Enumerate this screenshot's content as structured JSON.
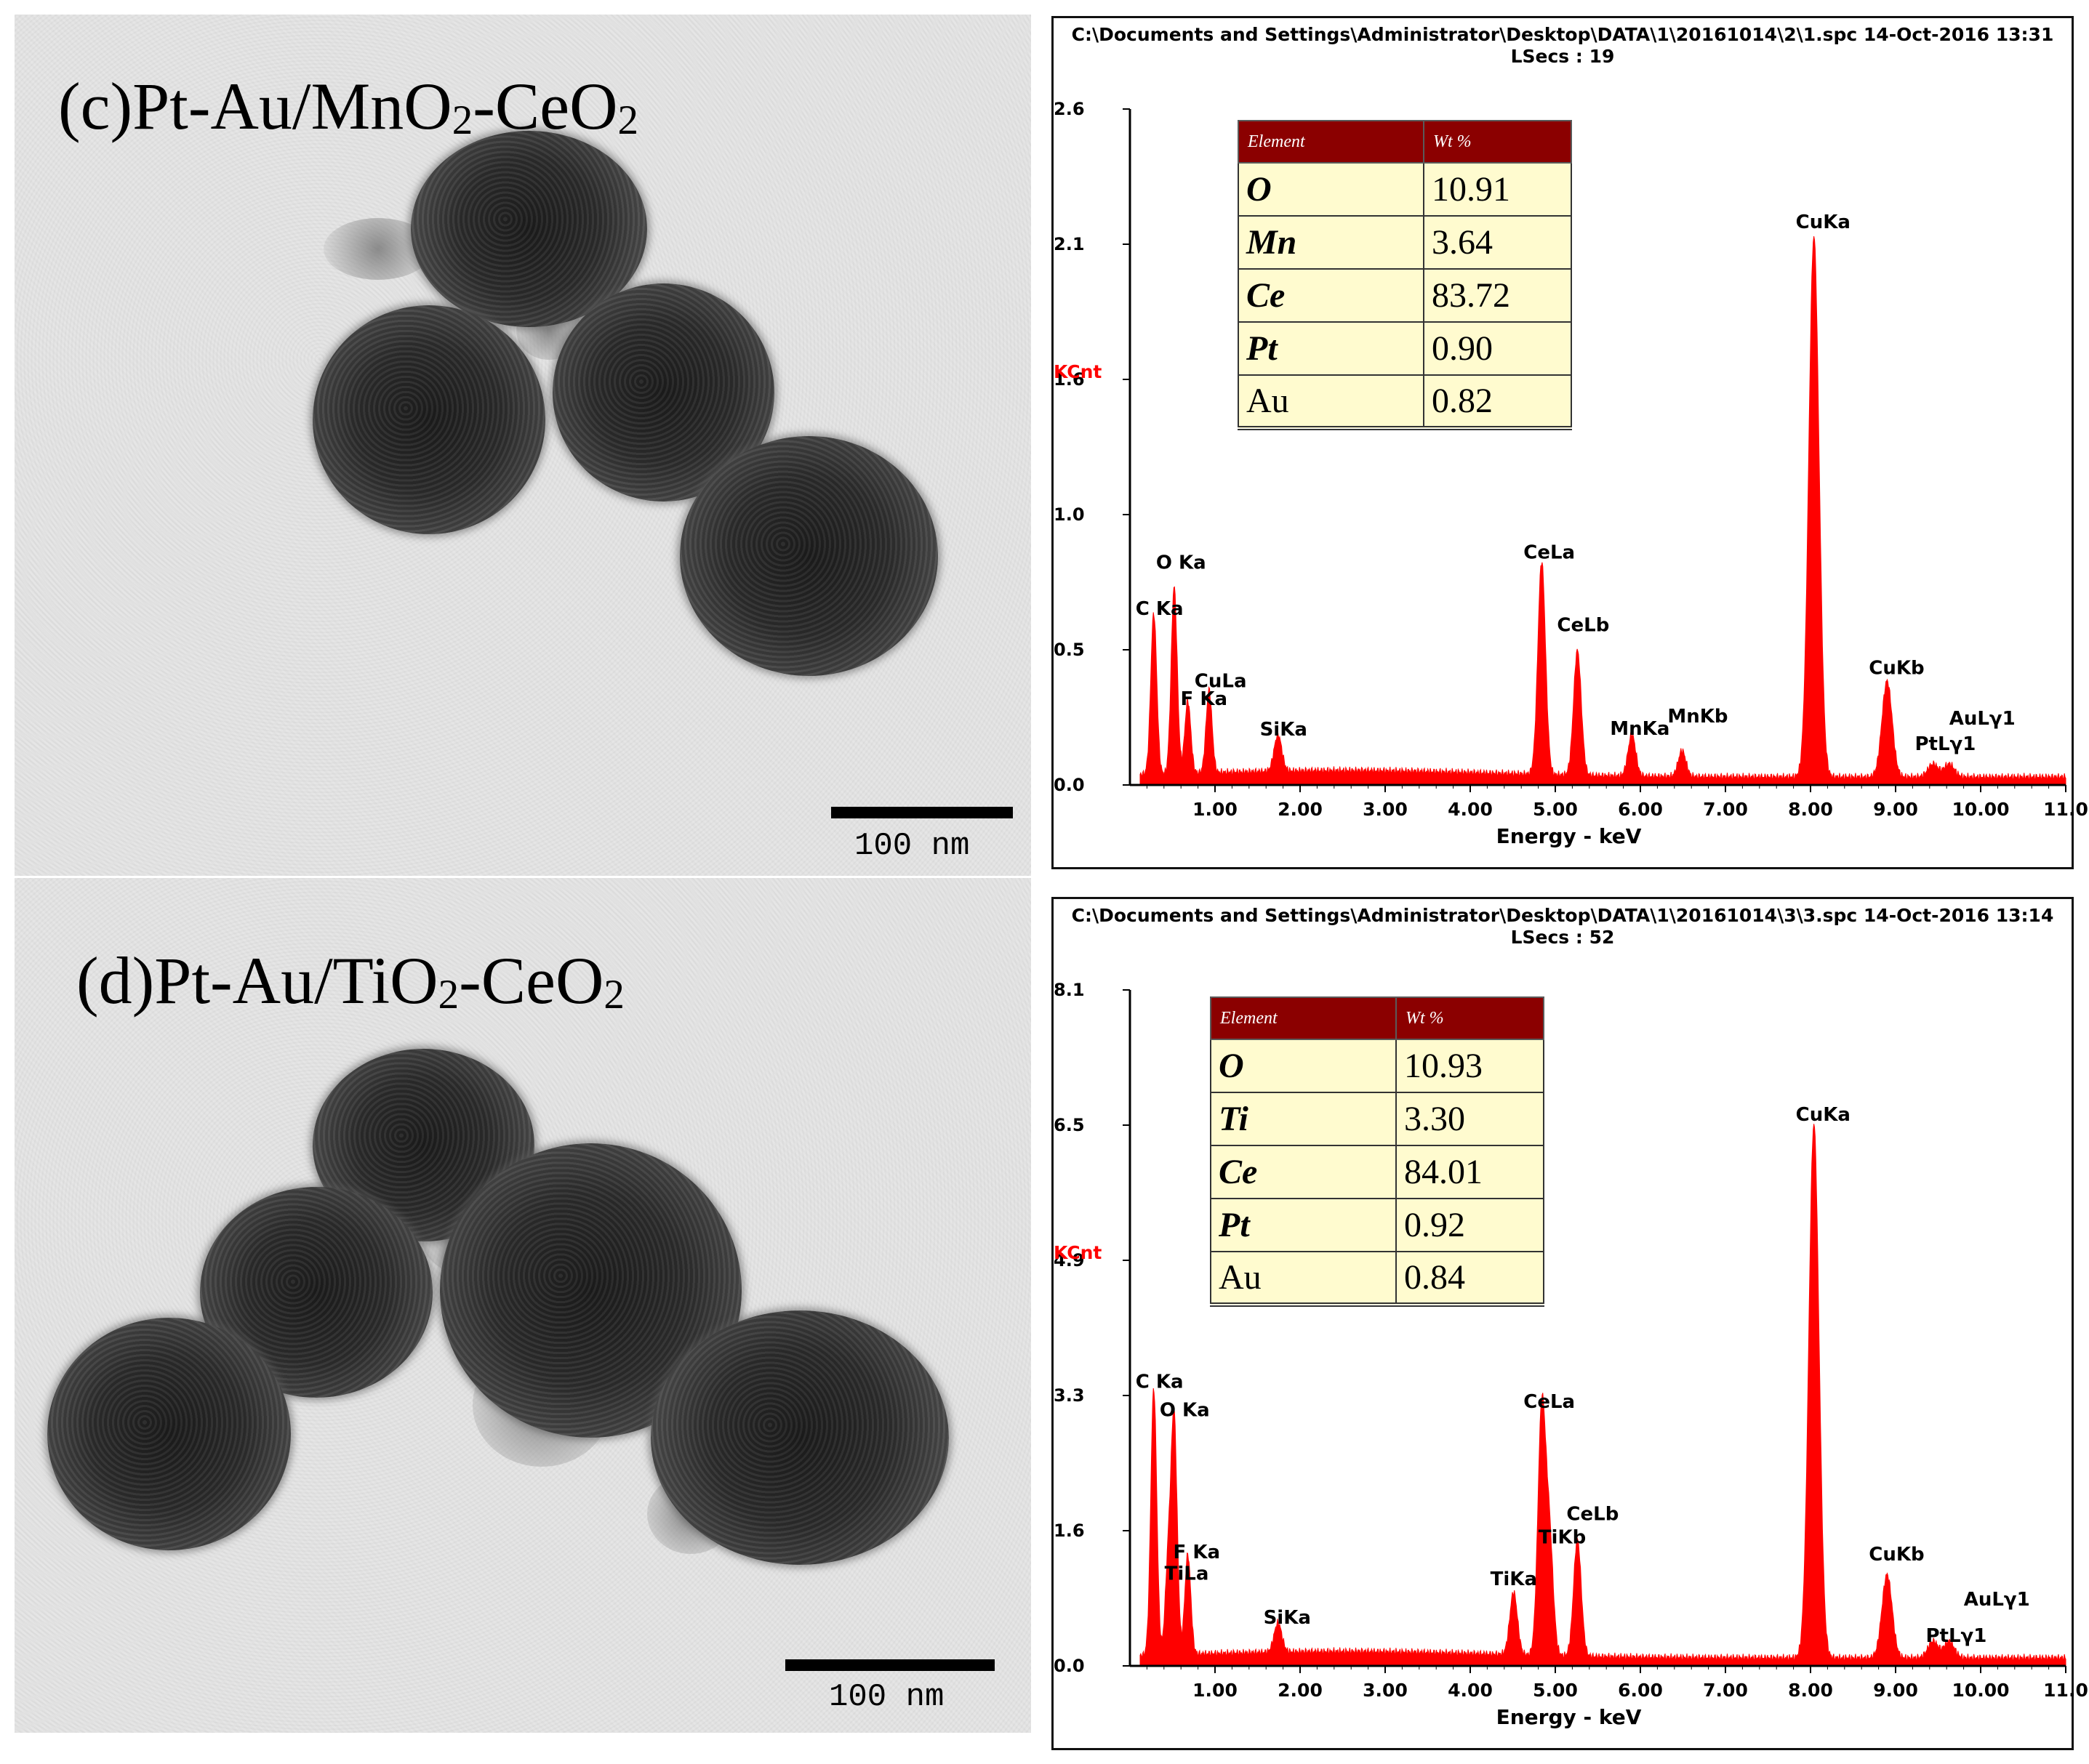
{
  "panels": [
    {
      "tem": {
        "title_prefix": "(c)Pt-Au/MnO",
        "title_sub1": "2",
        "title_mid": "-CeO",
        "title_sub2": "2",
        "scale_label": "100 nm"
      },
      "eds": {
        "header_line1": "C:\\Documents and Settings\\Administrator\\Desktop\\DATA\\1\\20161014\\2\\1.spc  14-Oct-2016 13:31",
        "header_line2": "LSecs :  19",
        "table": {
          "col_element": "Element",
          "col_wt": "Wt %",
          "rows": [
            {
              "element": "O",
              "wt": "10.91"
            },
            {
              "element": "Mn",
              "wt": "3.64"
            },
            {
              "element": "Ce",
              "wt": "83.72"
            },
            {
              "element": "Pt",
              "wt": "0.90"
            },
            {
              "element": "Au",
              "wt": "0.82"
            }
          ]
        }
      }
    },
    {
      "tem": {
        "title_prefix": "(d)Pt-Au/TiO",
        "title_sub1": "2",
        "title_mid": "-CeO",
        "title_sub2": "2",
        "scale_label": "100 nm"
      },
      "eds": {
        "header_line1": "C:\\Documents and Settings\\Administrator\\Desktop\\DATA\\1\\20161014\\3\\3.spc  14-Oct-2016 13:14",
        "header_line2": "LSecs :  52",
        "table": {
          "col_element": "Element",
          "col_wt": "Wt %",
          "rows": [
            {
              "element": "O",
              "wt": "10.93"
            },
            {
              "element": "Ti",
              "wt": "3.30"
            },
            {
              "element": "Ce",
              "wt": "84.01"
            },
            {
              "element": "Pt",
              "wt": "0.92"
            },
            {
              "element": "Au",
              "wt": "0.84"
            }
          ]
        }
      }
    }
  ],
  "chart_data": [
    {
      "type": "line",
      "xlabel": "Energy - keV",
      "ylabel": "KCnt",
      "xlim": [
        0,
        11.0
      ],
      "ylim": [
        0,
        2.6
      ],
      "x_ticks": [
        "1.00",
        "2.00",
        "3.00",
        "4.00",
        "5.00",
        "6.00",
        "7.00",
        "8.00",
        "9.00",
        "10.00",
        "11.0"
      ],
      "y_ticks": [
        "0.0",
        "0.5",
        "1.0",
        "1.6",
        "2.1",
        "2.6"
      ],
      "series_color": "#ff0000",
      "peaks": [
        {
          "label": "C Ka",
          "x": 0.28,
          "y": 0.62
        },
        {
          "label": "O Ka",
          "x": 0.52,
          "y": 0.72
        },
        {
          "label": "F Ka",
          "x": 0.68,
          "y": 0.28
        },
        {
          "label": "CuLa",
          "x": 0.93,
          "y": 0.32
        },
        {
          "label": "SiKa",
          "x": 1.74,
          "y": 0.14
        },
        {
          "label": "CeLa",
          "x": 4.84,
          "y": 0.82
        },
        {
          "label": "CeLb",
          "x": 5.26,
          "y": 0.48
        },
        {
          "label": "MnKa",
          "x": 5.9,
          "y": 0.16
        },
        {
          "label": "MnKb",
          "x": 6.49,
          "y": 0.1
        },
        {
          "label": "CuKa",
          "x": 8.04,
          "y": 2.08
        },
        {
          "label": "CuKb",
          "x": 8.9,
          "y": 0.37
        },
        {
          "label": "PtLγ1",
          "x": 9.44,
          "y": 0.05
        },
        {
          "label": "AuLγ1",
          "x": 9.63,
          "y": 0.05
        }
      ]
    },
    {
      "type": "line",
      "xlabel": "Energy - keV",
      "ylabel": "KCnt",
      "xlim": [
        0,
        11.0
      ],
      "ylim": [
        0,
        8.1
      ],
      "x_ticks": [
        "1.00",
        "2.00",
        "3.00",
        "4.00",
        "5.00",
        "6.00",
        "7.00",
        "8.00",
        "9.00",
        "10.00",
        "11.0"
      ],
      "y_ticks": [
        "0.0",
        "1.6",
        "3.3",
        "4.9",
        "6.5",
        "8.1"
      ],
      "series_color": "#ff0000",
      "peaks": [
        {
          "label": "C Ka",
          "x": 0.28,
          "y": 3.2
        },
        {
          "label": "O Ka",
          "x": 0.52,
          "y": 2.8
        },
        {
          "label": "TiLa",
          "x": 0.45,
          "y": 1.1
        },
        {
          "label": "F Ka",
          "x": 0.68,
          "y": 1.2
        },
        {
          "label": "SiKa",
          "x": 1.74,
          "y": 0.35
        },
        {
          "label": "TiKa",
          "x": 4.51,
          "y": 0.75
        },
        {
          "label": "CeLa",
          "x": 4.84,
          "y": 2.9
        },
        {
          "label": "TiKb",
          "x": 4.93,
          "y": 1.4
        },
        {
          "label": "CeLb",
          "x": 5.26,
          "y": 1.4
        },
        {
          "label": "CuKa",
          "x": 8.04,
          "y": 6.4
        },
        {
          "label": "CuKb",
          "x": 8.9,
          "y": 1.0
        },
        {
          "label": "PtLγ1",
          "x": 9.44,
          "y": 0.2
        },
        {
          "label": "AuLγ1",
          "x": 9.63,
          "y": 0.2
        }
      ]
    }
  ]
}
